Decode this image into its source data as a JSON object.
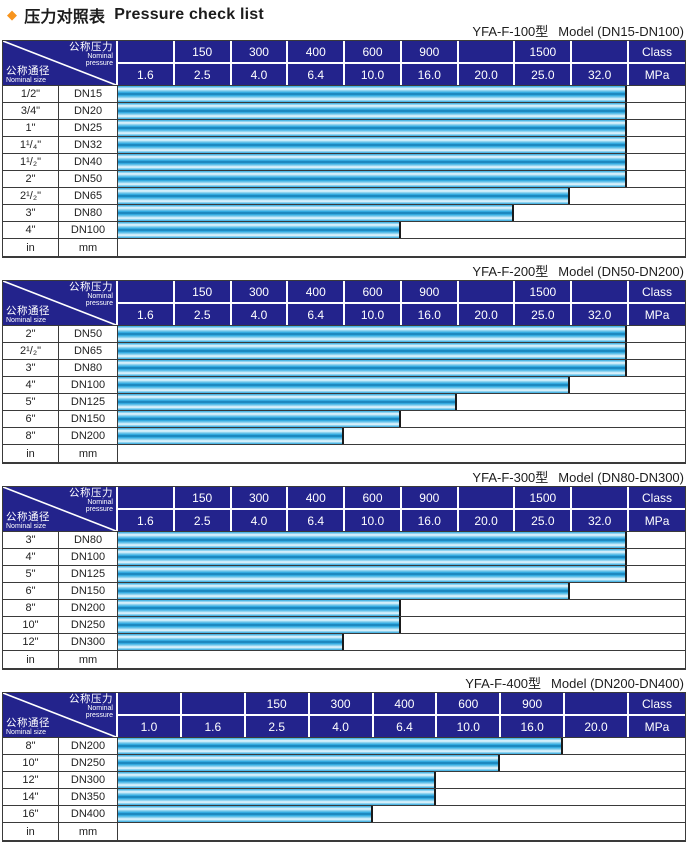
{
  "page_title": {
    "diamond_icon": "◆",
    "zh": "压力对照表",
    "en": "Pressure check list"
  },
  "colors": {
    "header_navy": "#23238c",
    "bar_cyan": "#2aa6de",
    "bar_dark_stripe": "#1576ad",
    "bar_highlight": "#eef9fe",
    "diamond_orange": "#f7941d",
    "grid_border": "#3a3a3a"
  },
  "corner": {
    "pressure_zh": "公称压力",
    "pressure_en_line1": "Nominal",
    "pressure_en_line2": "pressure",
    "size_zh": "公称通径",
    "size_en": "Nominal size"
  },
  "tables": [
    {
      "model": "YFA-F-100型",
      "range": "Model (DN15-DN100)",
      "class_cells": [
        "",
        "150",
        "300",
        "400",
        "600",
        "900",
        "",
        "1500",
        ""
      ],
      "class_label": "Class",
      "mpa_cells": [
        "1.6",
        "2.5",
        "4.0",
        "6.4",
        "10.0",
        "16.0",
        "20.0",
        "25.0",
        "32.0"
      ],
      "mpa_label": "MPa",
      "rows": [
        {
          "inch": "1/2\"",
          "dn": "DN15",
          "cols": 9,
          "mpa_range": "1.6-32.0"
        },
        {
          "inch": "3/4\"",
          "dn": "DN20",
          "cols": 9,
          "mpa_range": "1.6-32.0"
        },
        {
          "inch": "1\"",
          "dn": "DN25",
          "cols": 9,
          "mpa_range": "1.6-32.0"
        },
        {
          "inch": "1¹/₄\"",
          "dn": "DN32",
          "cols": 9,
          "mpa_range": "1.6-32.0"
        },
        {
          "inch": "1¹/₂\"",
          "dn": "DN40",
          "cols": 9,
          "mpa_range": "1.6-32.0"
        },
        {
          "inch": "2\"",
          "dn": "DN50",
          "cols": 9,
          "mpa_range": "1.6-32.0"
        },
        {
          "inch": "2¹/₂\"",
          "dn": "DN65",
          "cols": 8,
          "mpa_range": "1.6-25.0"
        },
        {
          "inch": "3\"",
          "dn": "DN80",
          "cols": 7,
          "mpa_range": "1.6-20.0"
        },
        {
          "inch": "4\"",
          "dn": "DN100",
          "cols": 5,
          "mpa_range": "1.6-10.0"
        },
        {
          "inch": "in",
          "dn": "mm",
          "cols": 0,
          "mpa_range": ""
        }
      ]
    },
    {
      "model": "YFA-F-200型",
      "range": "Model (DN50-DN200)",
      "class_cells": [
        "",
        "150",
        "300",
        "400",
        "600",
        "900",
        "",
        "1500",
        ""
      ],
      "class_label": "Class",
      "mpa_cells": [
        "1.6",
        "2.5",
        "4.0",
        "6.4",
        "10.0",
        "16.0",
        "20.0",
        "25.0",
        "32.0"
      ],
      "mpa_label": "MPa",
      "rows": [
        {
          "inch": "2\"",
          "dn": "DN50",
          "cols": 9,
          "mpa_range": "1.6-32.0"
        },
        {
          "inch": "2¹/₂\"",
          "dn": "DN65",
          "cols": 9,
          "mpa_range": "1.6-32.0"
        },
        {
          "inch": "3\"",
          "dn": "DN80",
          "cols": 9,
          "mpa_range": "1.6-32.0"
        },
        {
          "inch": "4\"",
          "dn": "DN100",
          "cols": 8,
          "mpa_range": "1.6-25.0"
        },
        {
          "inch": "5\"",
          "dn": "DN125",
          "cols": 6,
          "mpa_range": "1.6-16.0"
        },
        {
          "inch": "6\"",
          "dn": "DN150",
          "cols": 5,
          "mpa_range": "1.6-10.0"
        },
        {
          "inch": "8\"",
          "dn": "DN200",
          "cols": 4,
          "mpa_range": "1.6-6.4"
        },
        {
          "inch": "in",
          "dn": "mm",
          "cols": 0,
          "mpa_range": ""
        }
      ]
    },
    {
      "model": "YFA-F-300型",
      "range": "Model (DN80-DN300)",
      "class_cells": [
        "",
        "150",
        "300",
        "400",
        "600",
        "900",
        "",
        "1500",
        ""
      ],
      "class_label": "Class",
      "mpa_cells": [
        "1.6",
        "2.5",
        "4.0",
        "6.4",
        "10.0",
        "16.0",
        "20.0",
        "25.0",
        "32.0"
      ],
      "mpa_label": "MPa",
      "rows": [
        {
          "inch": "3\"",
          "dn": "DN80",
          "cols": 9,
          "mpa_range": "1.6-32.0"
        },
        {
          "inch": "4\"",
          "dn": "DN100",
          "cols": 9,
          "mpa_range": "1.6-32.0"
        },
        {
          "inch": "5\"",
          "dn": "DN125",
          "cols": 9,
          "mpa_range": "1.6-32.0"
        },
        {
          "inch": "6\"",
          "dn": "DN150",
          "cols": 8,
          "mpa_range": "1.6-25.0"
        },
        {
          "inch": "8\"",
          "dn": "DN200",
          "cols": 5,
          "mpa_range": "1.6-10.0"
        },
        {
          "inch": "10\"",
          "dn": "DN250",
          "cols": 5,
          "mpa_range": "1.6-10.0"
        },
        {
          "inch": "12\"",
          "dn": "DN300",
          "cols": 4,
          "mpa_range": "1.6-6.4"
        },
        {
          "inch": "in",
          "dn": "mm",
          "cols": 0,
          "mpa_range": ""
        }
      ]
    },
    {
      "model": "YFA-F-400型",
      "range": "Model (DN200-DN400)",
      "class_cells": [
        "",
        "",
        "150",
        "300",
        "400",
        "600",
        "900",
        ""
      ],
      "class_label": "Class",
      "mpa_cells": [
        "1.0",
        "1.6",
        "2.5",
        "4.0",
        "6.4",
        "10.0",
        "16.0",
        "20.0"
      ],
      "mpa_label": "MPa",
      "rows": [
        {
          "inch": "8\"",
          "dn": "DN200",
          "cols": 7,
          "mpa_range": "1.0-16.0"
        },
        {
          "inch": "10\"",
          "dn": "DN250",
          "cols": 6,
          "mpa_range": "1.0-10.0"
        },
        {
          "inch": "12\"",
          "dn": "DN300",
          "cols": 5,
          "mpa_range": "1.0-6.4"
        },
        {
          "inch": "14\"",
          "dn": "DN350",
          "cols": 5,
          "mpa_range": "1.0-6.4"
        },
        {
          "inch": "16\"",
          "dn": "DN400",
          "cols": 4,
          "mpa_range": "1.0-4.0"
        },
        {
          "inch": "in",
          "dn": "mm",
          "cols": 0,
          "mpa_range": ""
        }
      ]
    }
  ]
}
